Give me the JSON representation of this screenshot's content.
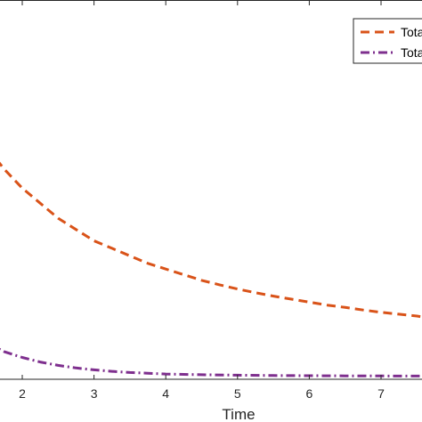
{
  "chart_data": {
    "type": "line",
    "title": "",
    "xlabel": "Time",
    "ylabel": "",
    "xlim": [
      1.3,
      7.6
    ],
    "xticks": [
      2,
      3,
      4,
      5,
      6,
      7
    ],
    "grid": false,
    "legend_position": "top-right",
    "series": [
      {
        "name": "Tota",
        "color": "#D95319",
        "style": "dashed",
        "x": [
          1.3,
          1.5,
          1.75,
          2.0,
          2.25,
          2.5,
          2.75,
          3.0,
          3.25,
          3.5,
          3.75,
          4.0,
          4.25,
          4.5,
          4.75,
          5.0,
          5.25,
          5.5,
          5.75,
          6.0,
          6.25,
          6.5,
          6.75,
          7.0,
          7.25,
          7.5,
          7.6
        ],
        "y": [
          0.67,
          0.61,
          0.55,
          0.5,
          0.46,
          0.42,
          0.39,
          0.36,
          0.34,
          0.32,
          0.3,
          0.285,
          0.27,
          0.255,
          0.243,
          0.232,
          0.222,
          0.213,
          0.205,
          0.197,
          0.189,
          0.183,
          0.176,
          0.17,
          0.165,
          0.16,
          0.157
        ]
      },
      {
        "name": "Tota",
        "color": "#7E2F8E",
        "style": "dash-dot",
        "x": [
          1.3,
          1.5,
          1.75,
          2.0,
          2.25,
          2.5,
          2.75,
          3.0,
          3.25,
          3.5,
          3.75,
          4.0,
          4.5,
          5.0,
          5.5,
          6.0,
          6.5,
          7.0,
          7.6
        ],
        "y": [
          0.11,
          0.09,
          0.065,
          0.05,
          0.038,
          0.029,
          0.022,
          0.017,
          0.013,
          0.01,
          0.008,
          0.006,
          0.004,
          0.003,
          0.002,
          0.0015,
          0.001,
          0.0008,
          0.0005
        ]
      }
    ]
  }
}
